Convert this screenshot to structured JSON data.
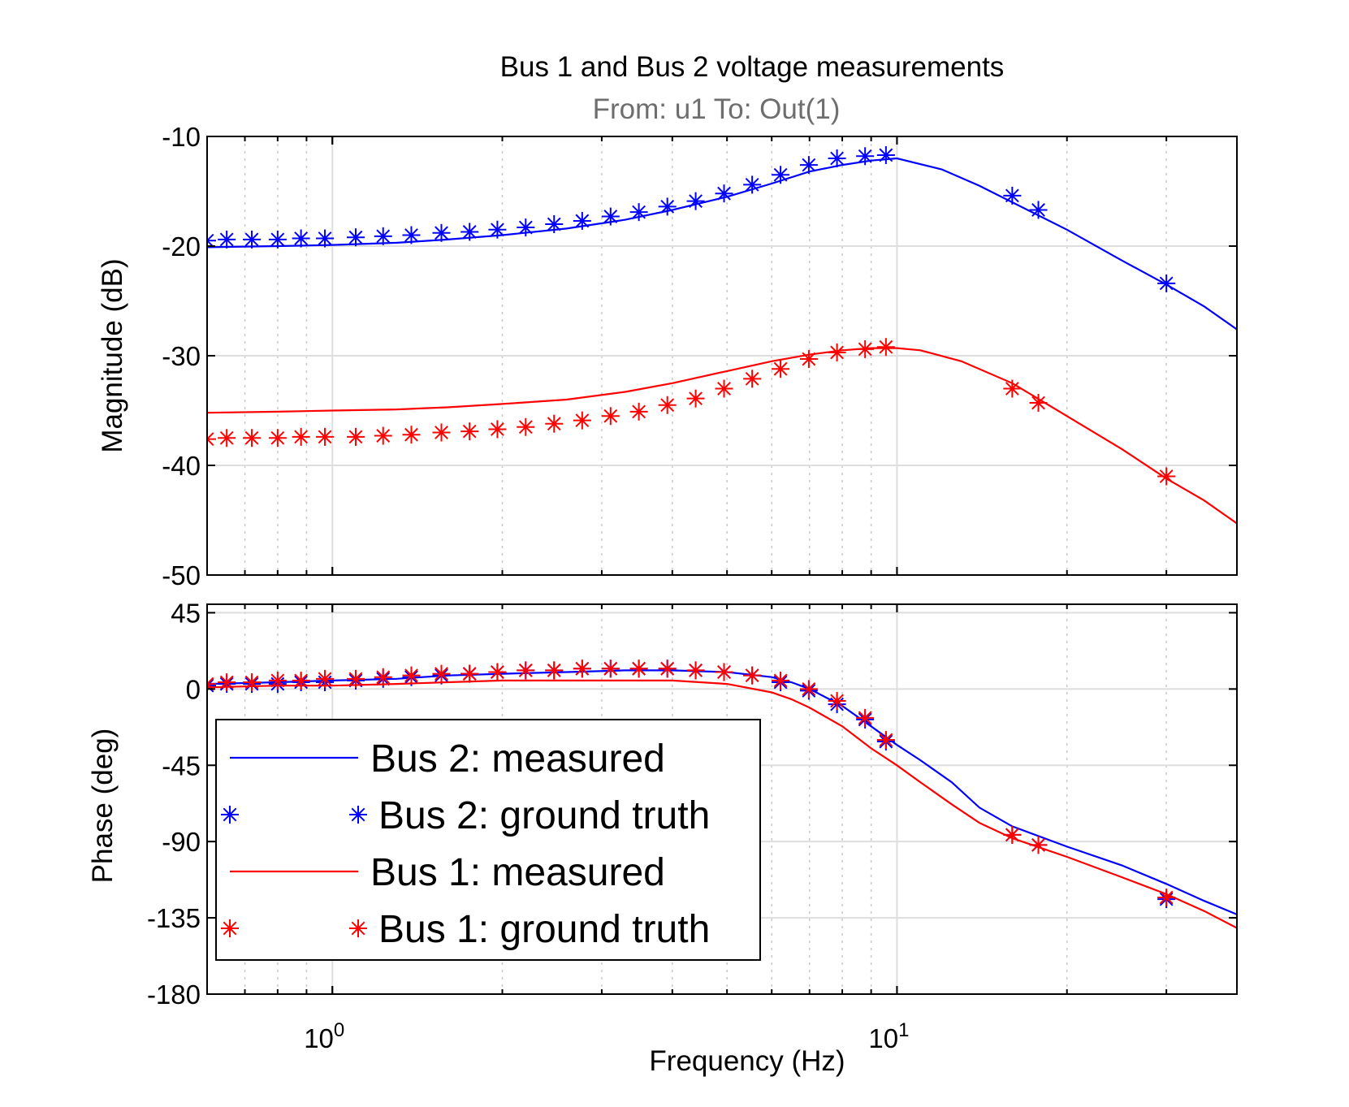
{
  "chart_data": {
    "type": "line",
    "title": "Bus 1 and Bus 2 voltage measurements",
    "subtitle": "From: u1  To: Out(1)",
    "xlabel": "Frequency  (Hz)",
    "xscale": "log",
    "xlim": [
      0.6,
      40
    ],
    "x_ticks": [
      {
        "base": "10",
        "exp": "0",
        "value": 1
      },
      {
        "base": "10",
        "exp": "1",
        "value": 10
      }
    ],
    "legend_position": "bottom-left of phase plot",
    "colors": {
      "bus2": "#0000ff",
      "bus1": "#ff0000"
    },
    "panels": [
      {
        "name": "magnitude",
        "ylabel": "Magnitude (dB)",
        "ylim": [
          -50,
          -10
        ],
        "yticks": [
          -10,
          -20,
          -30,
          -40,
          -50
        ],
        "ytick_labels": [
          "-10",
          "-20",
          "-30",
          "-40",
          "-50"
        ],
        "series": [
          {
            "name": "Bus 2: measured",
            "style": "line",
            "color": "#0000ff",
            "x": [
              0.6,
              0.8,
              1.0,
              1.3,
              1.6,
              2.0,
              2.6,
              3.3,
              4.0,
              5.0,
              6.0,
              7.0,
              8.0,
              9.0,
              10.0,
              12.0,
              14.0,
              16.0,
              20.0,
              25.0,
              30.0,
              35.0,
              40.0
            ],
            "y": [
              -20.1,
              -20.0,
              -19.9,
              -19.7,
              -19.4,
              -19.0,
              -18.4,
              -17.6,
              -16.7,
              -15.5,
              -14.3,
              -13.2,
              -12.6,
              -12.2,
              -12.0,
              -13.0,
              -14.5,
              -16.0,
              -18.5,
              -21.3,
              -23.5,
              -25.5,
              -27.6
            ]
          },
          {
            "name": "Bus 2: ground truth",
            "style": "markers",
            "marker": "asterisk",
            "color": "#0000ff",
            "x": [
              0.6,
              0.65,
              0.72,
              0.8,
              0.88,
              0.97,
              1.1,
              1.23,
              1.38,
              1.56,
              1.75,
              1.96,
              2.2,
              2.47,
              2.77,
              3.11,
              3.49,
              3.92,
              4.4,
              4.94,
              5.54,
              6.22,
              6.98,
              7.83,
              8.78,
              9.56,
              16.0,
              17.8,
              30.0
            ],
            "y": [
              -19.5,
              -19.4,
              -19.4,
              -19.4,
              -19.3,
              -19.3,
              -19.2,
              -19.1,
              -19.0,
              -18.8,
              -18.7,
              -18.5,
              -18.3,
              -18.0,
              -17.7,
              -17.3,
              -16.9,
              -16.4,
              -15.9,
              -15.2,
              -14.4,
              -13.5,
              -12.6,
              -12.0,
              -11.8,
              -11.7,
              -15.4,
              -16.7,
              -23.4
            ]
          },
          {
            "name": "Bus 1: measured",
            "style": "line",
            "color": "#ff0000",
            "x": [
              0.6,
              0.8,
              1.0,
              1.3,
              1.6,
              2.0,
              2.6,
              3.3,
              4.0,
              5.0,
              6.0,
              7.0,
              8.0,
              9.0,
              10.0,
              11.0,
              13.0,
              16.0,
              20.0,
              25.0,
              30.0,
              35.0,
              40.0
            ],
            "y": [
              -35.2,
              -35.1,
              -35.0,
              -34.9,
              -34.7,
              -34.4,
              -34.0,
              -33.3,
              -32.5,
              -31.4,
              -30.5,
              -29.9,
              -29.5,
              -29.3,
              -29.3,
              -29.5,
              -30.5,
              -32.5,
              -35.5,
              -38.5,
              -41.2,
              -43.2,
              -45.3
            ]
          },
          {
            "name": "Bus 1: ground truth",
            "style": "markers",
            "marker": "asterisk",
            "color": "#ff0000",
            "x": [
              0.6,
              0.65,
              0.72,
              0.8,
              0.88,
              0.97,
              1.1,
              1.23,
              1.38,
              1.56,
              1.75,
              1.96,
              2.2,
              2.47,
              2.77,
              3.11,
              3.49,
              3.92,
              4.4,
              4.94,
              5.54,
              6.22,
              6.98,
              7.83,
              8.78,
              9.56,
              16.0,
              17.8,
              30.0
            ],
            "y": [
              -37.6,
              -37.5,
              -37.5,
              -37.5,
              -37.4,
              -37.4,
              -37.4,
              -37.3,
              -37.2,
              -37.0,
              -36.9,
              -36.7,
              -36.5,
              -36.2,
              -35.9,
              -35.5,
              -35.1,
              -34.5,
              -33.9,
              -33.0,
              -32.1,
              -31.2,
              -30.3,
              -29.7,
              -29.4,
              -29.2,
              -33.0,
              -34.3,
              -41.0
            ]
          }
        ]
      },
      {
        "name": "phase",
        "ylabel": "Phase (deg)",
        "ylim": [
          -180,
          50
        ],
        "yticks": [
          45,
          0,
          -45,
          -90,
          -135,
          -180
        ],
        "ytick_labels": [
          "45",
          "0",
          "-45",
          "-90",
          "-135",
          "-180"
        ],
        "series": [
          {
            "name": "Bus 2: measured",
            "style": "line",
            "color": "#0000ff",
            "x": [
              0.6,
              0.8,
              1.0,
              1.3,
              1.6,
              2.0,
              2.6,
              3.3,
              4.0,
              5.0,
              6.0,
              6.5,
              7.0,
              8.0,
              9.0,
              10.0,
              11.0,
              12.5,
              14.0,
              16.0,
              20.0,
              25.0,
              30.0,
              35.0,
              40.0
            ],
            "y": [
              3,
              4,
              5,
              6,
              8,
              9,
              10,
              11,
              11,
              10,
              7,
              4,
              0,
              -10,
              -22,
              -33,
              -42,
              -55,
              -70,
              -81,
              -93,
              -104,
              -115,
              -125,
              -133
            ]
          },
          {
            "name": "Bus 2: ground truth",
            "style": "markers",
            "marker": "asterisk",
            "color": "#0000ff",
            "x": [
              0.6,
              0.65,
              0.72,
              0.8,
              0.88,
              0.97,
              1.1,
              1.23,
              1.38,
              1.56,
              1.75,
              1.96,
              2.2,
              2.47,
              2.77,
              3.11,
              3.49,
              3.92,
              4.4,
              4.94,
              5.54,
              6.22,
              6.98,
              7.83,
              8.78,
              9.56,
              16.0,
              17.8,
              30.0
            ],
            "y": [
              2,
              3,
              3,
              3,
              4,
              4,
              5,
              6,
              7,
              8,
              9,
              10,
              11,
              11,
              12,
              12,
              12,
              12,
              11,
              10,
              8,
              4,
              -1,
              -9,
              -18,
              -31,
              -86,
              -92,
              -124
            ]
          },
          {
            "name": "Bus 1: measured",
            "style": "line",
            "color": "#ff0000",
            "x": [
              0.6,
              0.8,
              1.0,
              1.3,
              1.6,
              2.0,
              2.6,
              3.3,
              4.0,
              5.0,
              6.0,
              6.5,
              7.0,
              8.0,
              9.0,
              10.0,
              11.0,
              12.5,
              14.0,
              16.0,
              20.0,
              25.0,
              30.0,
              35.0,
              40.0
            ],
            "y": [
              1,
              2,
              2,
              3,
              4,
              5,
              5,
              5,
              5,
              3,
              -2,
              -6,
              -11,
              -22,
              -35,
              -45,
              -55,
              -68,
              -79,
              -88,
              -99,
              -111,
              -121,
              -131,
              -141
            ]
          },
          {
            "name": "Bus 1: ground truth",
            "style": "markers",
            "marker": "asterisk",
            "color": "#ff0000",
            "x": [
              0.6,
              0.65,
              0.72,
              0.8,
              0.88,
              0.97,
              1.1,
              1.23,
              1.38,
              1.56,
              1.75,
              1.96,
              2.2,
              2.47,
              2.77,
              3.11,
              3.49,
              3.92,
              4.4,
              4.94,
              5.54,
              6.22,
              6.98,
              7.83,
              8.78,
              9.56,
              16.0,
              17.8,
              30.0
            ],
            "y": [
              3,
              4,
              4,
              5,
              5,
              6,
              6,
              7,
              8,
              9,
              9,
              10,
              11,
              11,
              12,
              12,
              12,
              12,
              11,
              10,
              8,
              5,
              0,
              -7,
              -17,
              -30,
              -86,
              -92,
              -123
            ]
          }
        ]
      }
    ],
    "legend": [
      {
        "label": "Bus 2: measured",
        "style": "line",
        "color": "#0000ff"
      },
      {
        "label": "Bus 2: ground truth",
        "style": "markers",
        "color": "#0000ff"
      },
      {
        "label": "Bus 1: measured",
        "style": "line",
        "color": "#ff0000"
      },
      {
        "label": "Bus 1: ground truth",
        "style": "markers",
        "color": "#ff0000"
      }
    ]
  }
}
